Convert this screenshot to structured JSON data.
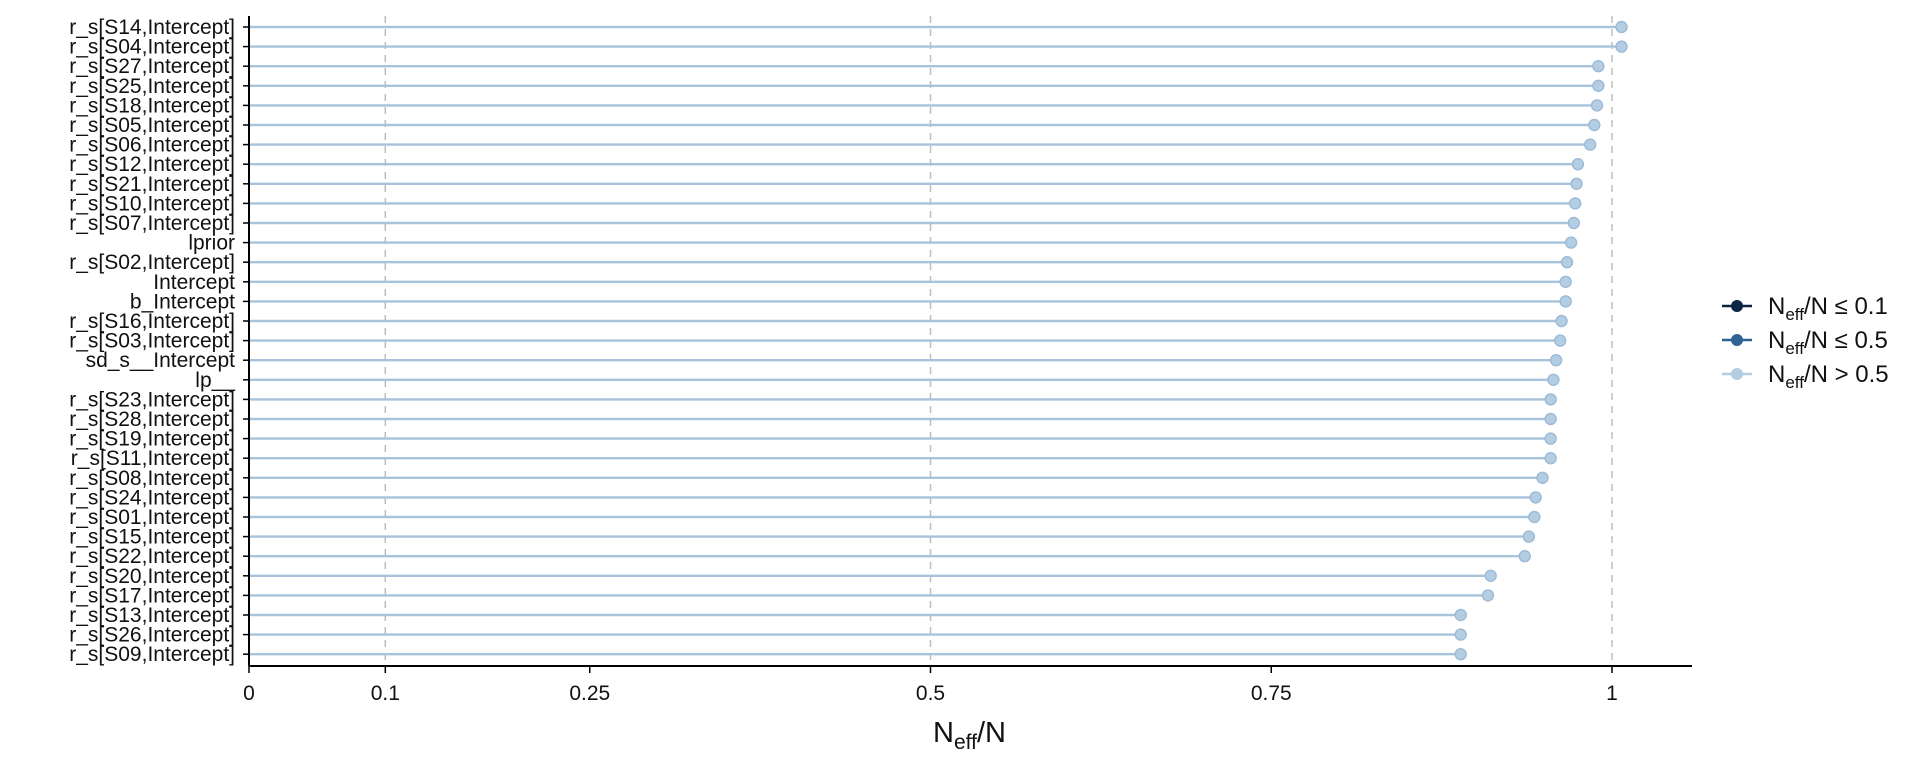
{
  "chart_data": {
    "type": "lollipop",
    "xlabel": {
      "main": "N",
      "sub": "eff",
      "tail": "/N"
    },
    "xlim": [
      0,
      1.06
    ],
    "xticks": [
      0,
      0.1,
      0.25,
      0.5,
      0.75,
      1
    ],
    "xtick_labels": [
      "0",
      "0.1",
      "0.25",
      "0.5",
      "0.75",
      "1"
    ],
    "reference_lines": [
      0.1,
      0.5,
      1
    ],
    "categories": [
      "r_s[S14,Intercept]",
      "r_s[S04,Intercept]",
      "r_s[S27,Intercept]",
      "r_s[S25,Intercept]",
      "r_s[S18,Intercept]",
      "r_s[S05,Intercept]",
      "r_s[S06,Intercept]",
      "r_s[S12,Intercept]",
      "r_s[S21,Intercept]",
      "r_s[S10,Intercept]",
      "r_s[S07,Intercept]",
      "lprior",
      "r_s[S02,Intercept]",
      "Intercept",
      "b_Intercept",
      "r_s[S16,Intercept]",
      "r_s[S03,Intercept]",
      "sd_s__Intercept",
      "lp__",
      "r_s[S23,Intercept]",
      "r_s[S28,Intercept]",
      "r_s[S19,Intercept]",
      "r_s[S11,Intercept]",
      "r_s[S08,Intercept]",
      "r_s[S24,Intercept]",
      "r_s[S01,Intercept]",
      "r_s[S15,Intercept]",
      "r_s[S22,Intercept]",
      "r_s[S20,Intercept]",
      "r_s[S17,Intercept]",
      "r_s[S13,Intercept]",
      "r_s[S26,Intercept]",
      "r_s[S09,Intercept]"
    ],
    "values": [
      1.007,
      1.007,
      0.99,
      0.99,
      0.989,
      0.987,
      0.984,
      0.975,
      0.974,
      0.973,
      0.972,
      0.97,
      0.967,
      0.966,
      0.966,
      0.963,
      0.962,
      0.959,
      0.957,
      0.955,
      0.955,
      0.955,
      0.955,
      0.949,
      0.944,
      0.943,
      0.939,
      0.936,
      0.911,
      0.909,
      0.889,
      0.889,
      0.889
    ],
    "legend": {
      "position": "right",
      "entries": [
        {
          "label": {
            "main": "N",
            "sub": "eff",
            "tail": "/N ≤ 0.1"
          },
          "color": "#0b2545"
        },
        {
          "label": {
            "main": "N",
            "sub": "eff",
            "tail": "/N ≤ 0.5"
          },
          "color": "#2f6396"
        },
        {
          "label": {
            "main": "N",
            "sub": "eff",
            "tail": "/N > 0.5"
          },
          "color": "#b3cde3"
        }
      ]
    },
    "colors": {
      "low": "#0b2545",
      "mid": "#2f6396",
      "high": "#b3cde3",
      "line": "#a8c4dc",
      "point_stroke": "#9dbad6",
      "refline": "#bdbdbd",
      "axis": "#000000"
    },
    "grid": false
  }
}
